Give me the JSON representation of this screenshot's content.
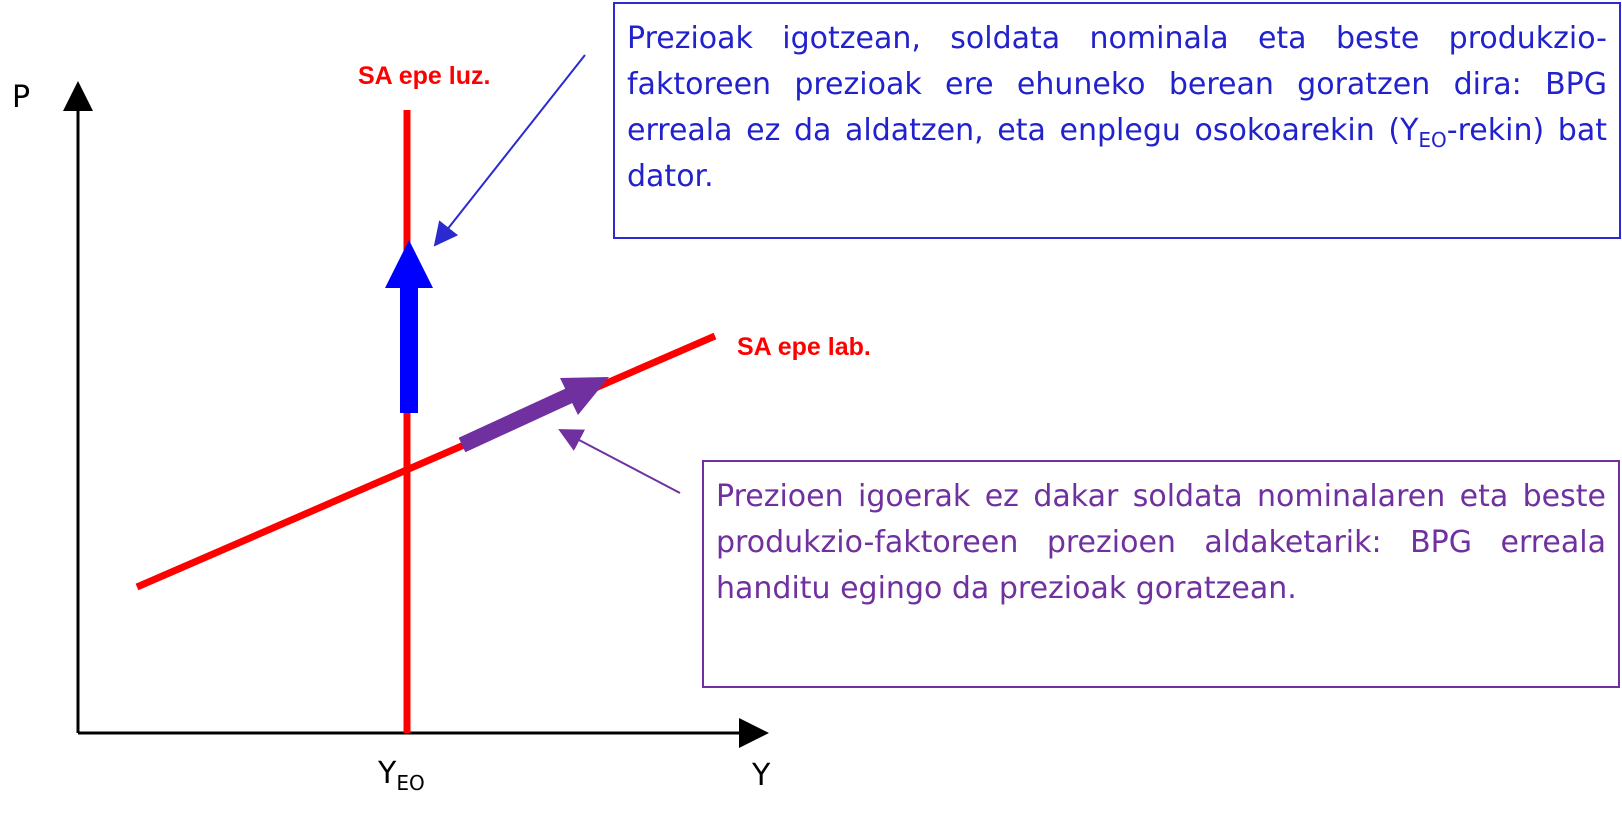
{
  "axes": {
    "y_label": "P",
    "x_label": "Y",
    "x_mark": {
      "main": "Y",
      "sub": "EO"
    }
  },
  "curves": {
    "long_run": "SA epe luz.",
    "short_run": "SA epe lab."
  },
  "notes": [
    {
      "parts": [
        "Prezioak igotzean, soldata nominala eta beste produkzio-faktoreen prezioak ere ehuneko berean goratzen dira: BPG erreala ez da aldatzen, eta enplegu osokoarekin (Y",
        "EO",
        "-rekin) bat dator."
      ]
    },
    {
      "parts": [
        "Prezioen igoerak ez dakar soldata nominalaren eta beste produkzio-faktoreen prezioen aldaketarik: BPG erreala handitu egingo da prezioak goratzean."
      ]
    }
  ]
}
